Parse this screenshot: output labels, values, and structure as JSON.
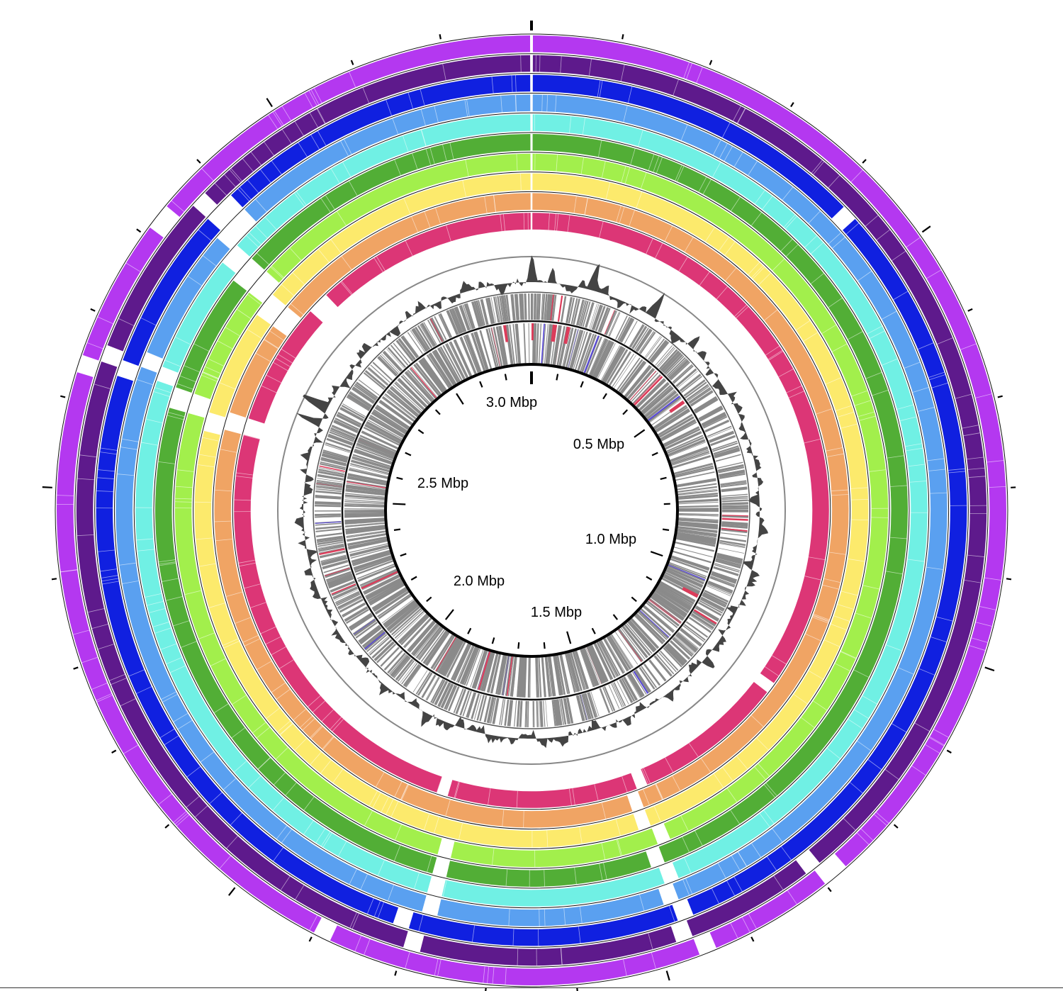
{
  "genome_map": {
    "genome_length_mbp": 3.3,
    "scale_labels": [
      {
        "position_mbp": 0.5,
        "text": "0.5 Mbp"
      },
      {
        "position_mbp": 1.0,
        "text": "1.0 Mbp"
      },
      {
        "position_mbp": 1.5,
        "text": "1.5 Mbp"
      },
      {
        "position_mbp": 2.0,
        "text": "2.0 Mbp"
      },
      {
        "position_mbp": 2.5,
        "text": "2.5 Mbp"
      },
      {
        "position_mbp": 3.0,
        "text": "3.0 Mbp"
      }
    ],
    "blast_rings": [
      {
        "color": "#b438f0",
        "gaps_mbp": [
          [
            2.81,
            2.84
          ],
          [
            2.63,
            2.65
          ],
          [
            1.88,
            1.9
          ],
          [
            1.27,
            1.3
          ],
          [
            1.44,
            1.46
          ]
        ]
      },
      {
        "color": "#5e1a8c",
        "gaps_mbp": [
          [
            2.86,
            2.88
          ],
          [
            2.65,
            2.67
          ],
          [
            1.78,
            1.8
          ],
          [
            1.29,
            1.31
          ],
          [
            1.46,
            1.48
          ]
        ]
      },
      {
        "color": "#1020e0",
        "gaps_mbp": [
          [
            2.86,
            2.9
          ],
          [
            2.64,
            2.66
          ],
          [
            0.42,
            0.44
          ],
          [
            1.8,
            1.82
          ],
          [
            1.45,
            1.47
          ]
        ]
      },
      {
        "color": "#5aa0f0",
        "gaps_mbp": [
          [
            2.85,
            2.9
          ],
          [
            2.66,
            2.68
          ],
          [
            1.77,
            1.79
          ],
          [
            1.46,
            1.48
          ]
        ]
      },
      {
        "color": "#70f0e4",
        "gaps_mbp": [
          [
            2.83,
            2.86
          ],
          [
            2.65,
            2.67
          ],
          [
            1.77,
            1.79
          ],
          [
            1.45,
            1.47
          ]
        ]
      },
      {
        "color": "#52ae36",
        "gaps_mbp": [
          [
            2.82,
            2.86
          ],
          [
            2.62,
            2.65
          ],
          [
            1.77,
            1.79
          ],
          [
            1.46,
            1.48
          ]
        ]
      },
      {
        "color": "#a2ef4c",
        "gaps_mbp": [
          [
            2.82,
            2.86
          ],
          [
            2.62,
            2.65
          ],
          [
            1.77,
            1.79
          ],
          [
            1.44,
            1.46
          ]
        ]
      },
      {
        "color": "#fcea6c",
        "gaps_mbp": [
          [
            2.8,
            2.84
          ],
          [
            2.6,
            2.63
          ],
          [
            1.46,
            1.48
          ]
        ]
      },
      {
        "color": "#f0a464",
        "gaps_mbp": [
          [
            2.8,
            2.84
          ],
          [
            2.61,
            2.64
          ],
          [
            1.46,
            1.48
          ]
        ]
      },
      {
        "color": "#dc3676",
        "gaps_mbp": [
          [
            2.86,
            2.9
          ],
          [
            2.61,
            2.64
          ],
          [
            1.8,
            1.82
          ],
          [
            1.44,
            1.46
          ],
          [
            1.15,
            1.17
          ]
        ]
      }
    ],
    "colors": {
      "gc_track": "#444444",
      "feature_bars": "#8a8a8a",
      "highlight_red": "#dc3c5a",
      "highlight_blue": "#5848d8",
      "axis_ring": "#000000"
    }
  }
}
